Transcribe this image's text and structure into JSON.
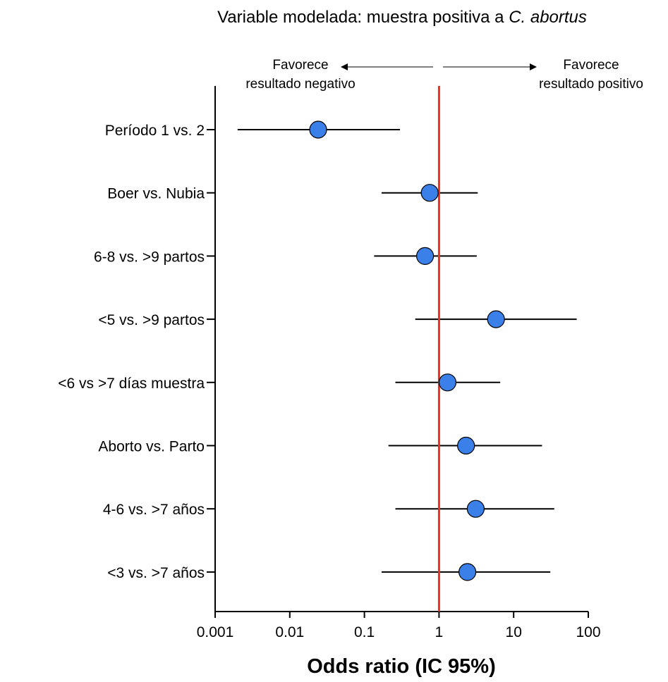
{
  "chart_data": {
    "type": "forest",
    "title": "Variable modelada: muestra positiva a ",
    "title_italic": "C. abortus",
    "xlabel": "Odds ratio (IC 95%)",
    "xscale": "log10",
    "xlim": [
      0.001,
      100
    ],
    "xticks": [
      0.001,
      0.01,
      0.1,
      1,
      10,
      100
    ],
    "xtick_labels": [
      "0.001",
      "0.01",
      "0.1",
      "1",
      "10",
      "100"
    ],
    "reference_line": 1,
    "annotation_left": [
      "Favorece",
      "resultado negativo"
    ],
    "annotation_right": [
      "Favorece",
      "resultado positivo"
    ],
    "colors": {
      "point": "#3b7fe8",
      "reference": "#e8321e",
      "line": "#000000"
    },
    "rows": [
      {
        "label": "Período 1 vs. 2",
        "or": 0.024,
        "lo": 0.002,
        "hi": 0.3
      },
      {
        "label": "Boer vs. Nubia",
        "or": 0.75,
        "lo": 0.17,
        "hi": 3.3
      },
      {
        "label": "6-8 vs. >9 partos",
        "or": 0.65,
        "lo": 0.135,
        "hi": 3.2
      },
      {
        "label": "<5 vs. >9 partos",
        "or": 5.8,
        "lo": 0.48,
        "hi": 70
      },
      {
        "label": "<6 vs >7 días muestra",
        "or": 1.3,
        "lo": 0.26,
        "hi": 6.6
      },
      {
        "label": "Aborto vs. Parto",
        "or": 2.3,
        "lo": 0.21,
        "hi": 24
      },
      {
        "label": "4-6 vs. >7 años",
        "or": 3.1,
        "lo": 0.26,
        "hi": 35
      },
      {
        "label": "<3 vs. >7 años",
        "or": 2.4,
        "lo": 0.17,
        "hi": 31
      }
    ]
  }
}
